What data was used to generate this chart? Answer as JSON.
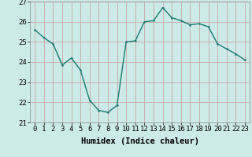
{
  "x": [
    0,
    1,
    2,
    3,
    4,
    5,
    6,
    7,
    8,
    9,
    10,
    11,
    12,
    13,
    14,
    15,
    16,
    17,
    18,
    19,
    20,
    21,
    22,
    23
  ],
  "y": [
    25.6,
    25.2,
    24.9,
    23.85,
    24.2,
    23.6,
    22.1,
    21.6,
    21.5,
    21.85,
    25.0,
    25.05,
    26.0,
    26.05,
    26.7,
    26.2,
    26.05,
    25.85,
    25.9,
    25.75,
    24.9,
    24.65,
    24.4,
    24.1
  ],
  "line_color": "#1a7a6e",
  "marker_color": "#1a7a6e",
  "bg_color": "#cceae7",
  "grid_color": "#c8a8a8",
  "xlabel": "Humidex (Indice chaleur)",
  "ylim": [
    21,
    27
  ],
  "xlim": [
    -0.5,
    23.5
  ],
  "yticks": [
    21,
    22,
    23,
    24,
    25,
    26,
    27
  ],
  "xticks": [
    0,
    1,
    2,
    3,
    4,
    5,
    6,
    7,
    8,
    9,
    10,
    11,
    12,
    13,
    14,
    15,
    16,
    17,
    18,
    19,
    20,
    21,
    22,
    23
  ],
  "xlabel_fontsize": 7.5,
  "tick_fontsize": 6.5,
  "line_width": 1.0,
  "marker_size": 2.5
}
